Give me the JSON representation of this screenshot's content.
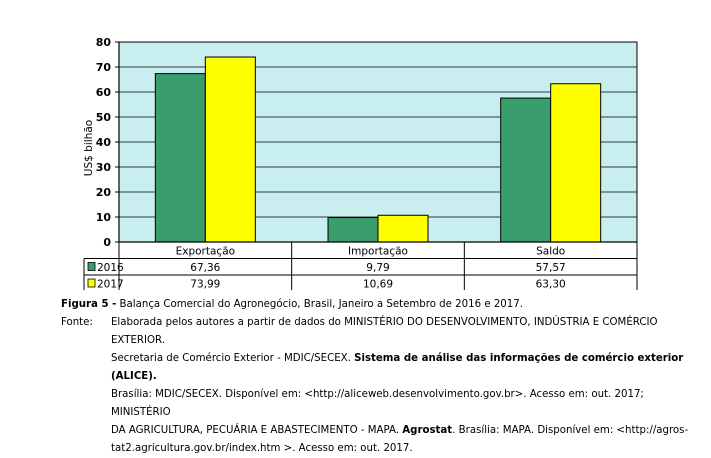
{
  "chart_data": {
    "type": "bar",
    "ylabel": "US$ bilhão",
    "ylim": [
      0,
      80
    ],
    "yticks": [
      0,
      10,
      20,
      30,
      40,
      50,
      60,
      70,
      80
    ],
    "grid": true,
    "categories": [
      "Exportação",
      "Importação",
      "Saldo"
    ],
    "series": [
      {
        "name": "2016",
        "color": "#3a9e6c",
        "values": [
          67.36,
          9.79,
          57.57
        ],
        "labels": [
          "67,36",
          "9,79",
          "57,57"
        ]
      },
      {
        "name": "2017",
        "color": "#ffff00",
        "values": [
          73.99,
          10.69,
          63.3
        ],
        "labels": [
          "73,99",
          "10,69",
          "63,30"
        ]
      }
    ],
    "plot_background": "#c8eef0",
    "legend_placement": "data-table"
  },
  "caption": {
    "figure_label": "Figura 5 -",
    "figure_text": " Balança Comercial do Agronegócio, Brasil, Janeiro a Setembro de 2016 e 2017.",
    "source_label": "Fonte:",
    "source_line1": "Elaborada pelos autores a partir de dados do MINISTÉRIO DO DESENVOLVIMENTO, INDÚSTRIA E COMÉRCIO EXTERIOR.",
    "source_line2_plain": "Secretaria de Comércio Exterior - MDIC/SECEX. ",
    "source_line2_bold": "Sistema de análise das informações de comércio exterior (ALICE).",
    "source_line3": "Brasília: MDIC/SECEX. Disponível em: <http://aliceweb.desenvolvimento.gov.br>. Acesso em: out. 2017; MINISTÉRIO",
    "source_line4_plain": "DA AGRICULTURA, PECUÁRIA E ABASTECIMENTO - MAPA. ",
    "source_line4_bold": "Agrostat",
    "source_line4_rest": ". Brasília: MAPA. Disponível em: <http://agros-",
    "source_line5": "tat2.agricultura.gov.br/index.htm >. Acesso em: out. 2017."
  }
}
